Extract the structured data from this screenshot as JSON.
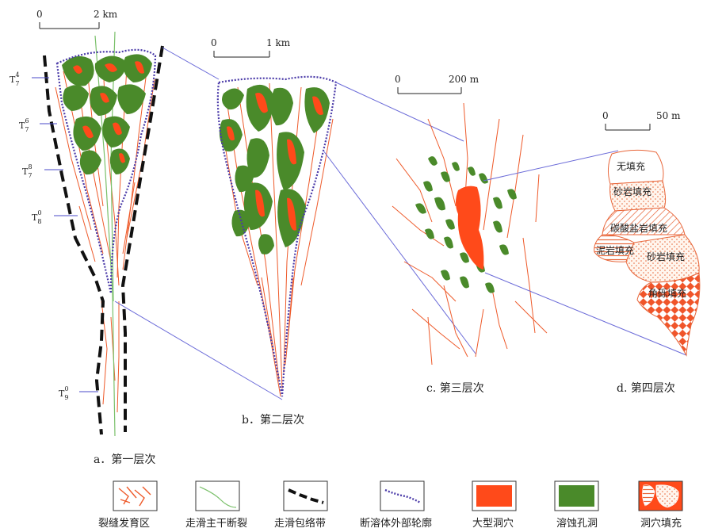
{
  "panels": {
    "a": {
      "caption": "a．第一层次",
      "scale": "2 km",
      "scale_zero": "0",
      "strata": [
        {
          "base": "T",
          "sub": "7",
          "sup": "4"
        },
        {
          "base": "T",
          "sub": "7",
          "sup": "6"
        },
        {
          "base": "T",
          "sub": "7",
          "sup": "8"
        },
        {
          "base": "T",
          "sub": "8",
          "sup": "0"
        },
        {
          "base": "T",
          "sub": "9",
          "sup": "0"
        }
      ]
    },
    "b": {
      "caption": "b．第二层次",
      "scale": "1 km",
      "scale_zero": "0"
    },
    "c": {
      "caption": "c. 第三层次",
      "scale": "200 m",
      "scale_zero": "0"
    },
    "d": {
      "caption": "d. 第四层次",
      "scale": "50 m",
      "scale_zero": "0",
      "fills": [
        "无填充",
        "砂岩填充",
        "碳酸盐岩填充",
        "泥岩填充",
        "砂岩填充",
        "角砾填充"
      ]
    }
  },
  "legend": [
    {
      "label": "裂缝发育区",
      "icon": "fracture-zone-icon"
    },
    {
      "label": "走滑主干断裂",
      "icon": "strike-slip-main-fault-icon"
    },
    {
      "label": "走滑包络带",
      "icon": "strike-slip-envelope-icon"
    },
    {
      "label": "断溶体外部轮廓",
      "icon": "fault-karst-outline-icon"
    },
    {
      "label": "大型洞穴",
      "icon": "large-cave-icon"
    },
    {
      "label": "溶蚀孔洞",
      "icon": "dissolution-vug-icon"
    },
    {
      "label": "洞穴填充",
      "icon": "cave-fill-icon"
    }
  ],
  "colors": {
    "fracture": "#ee5a2a",
    "cave": "#ff4a1a",
    "vug": "#4a8a2a",
    "outline": "#4a3aa8",
    "connector": "#6a6ad8",
    "fault": "#7ac06a"
  }
}
